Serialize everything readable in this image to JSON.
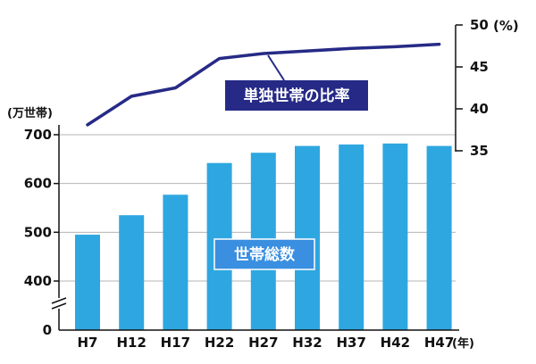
{
  "chart_data": {
    "type": "bar+line",
    "categories": [
      "H7",
      "H12",
      "H17",
      "H22",
      "H27",
      "H32",
      "H37",
      "H42",
      "H47"
    ],
    "x_unit": "(年)",
    "bars": {
      "name": "世帯総数",
      "values": [
        495,
        535,
        577,
        642,
        663,
        677,
        680,
        682,
        677
      ],
      "unit": "(万世帯)",
      "yticks": [
        "0",
        "400",
        "500",
        "600",
        "700"
      ],
      "ylim": [
        400,
        700
      ],
      "axis_break": true,
      "color": "#2ea7e0",
      "label_bg": "#3a8fe0"
    },
    "line": {
      "name": "単独世帯の比率",
      "values": [
        38.1,
        41.5,
        42.5,
        46.0,
        46.6,
        46.9,
        47.2,
        47.4,
        47.7
      ],
      "unit": "(%)",
      "yticks": [
        "35",
        "40",
        "45",
        "50"
      ],
      "ylim": [
        35,
        50
      ],
      "color": "#262a86"
    },
    "grid": true
  }
}
